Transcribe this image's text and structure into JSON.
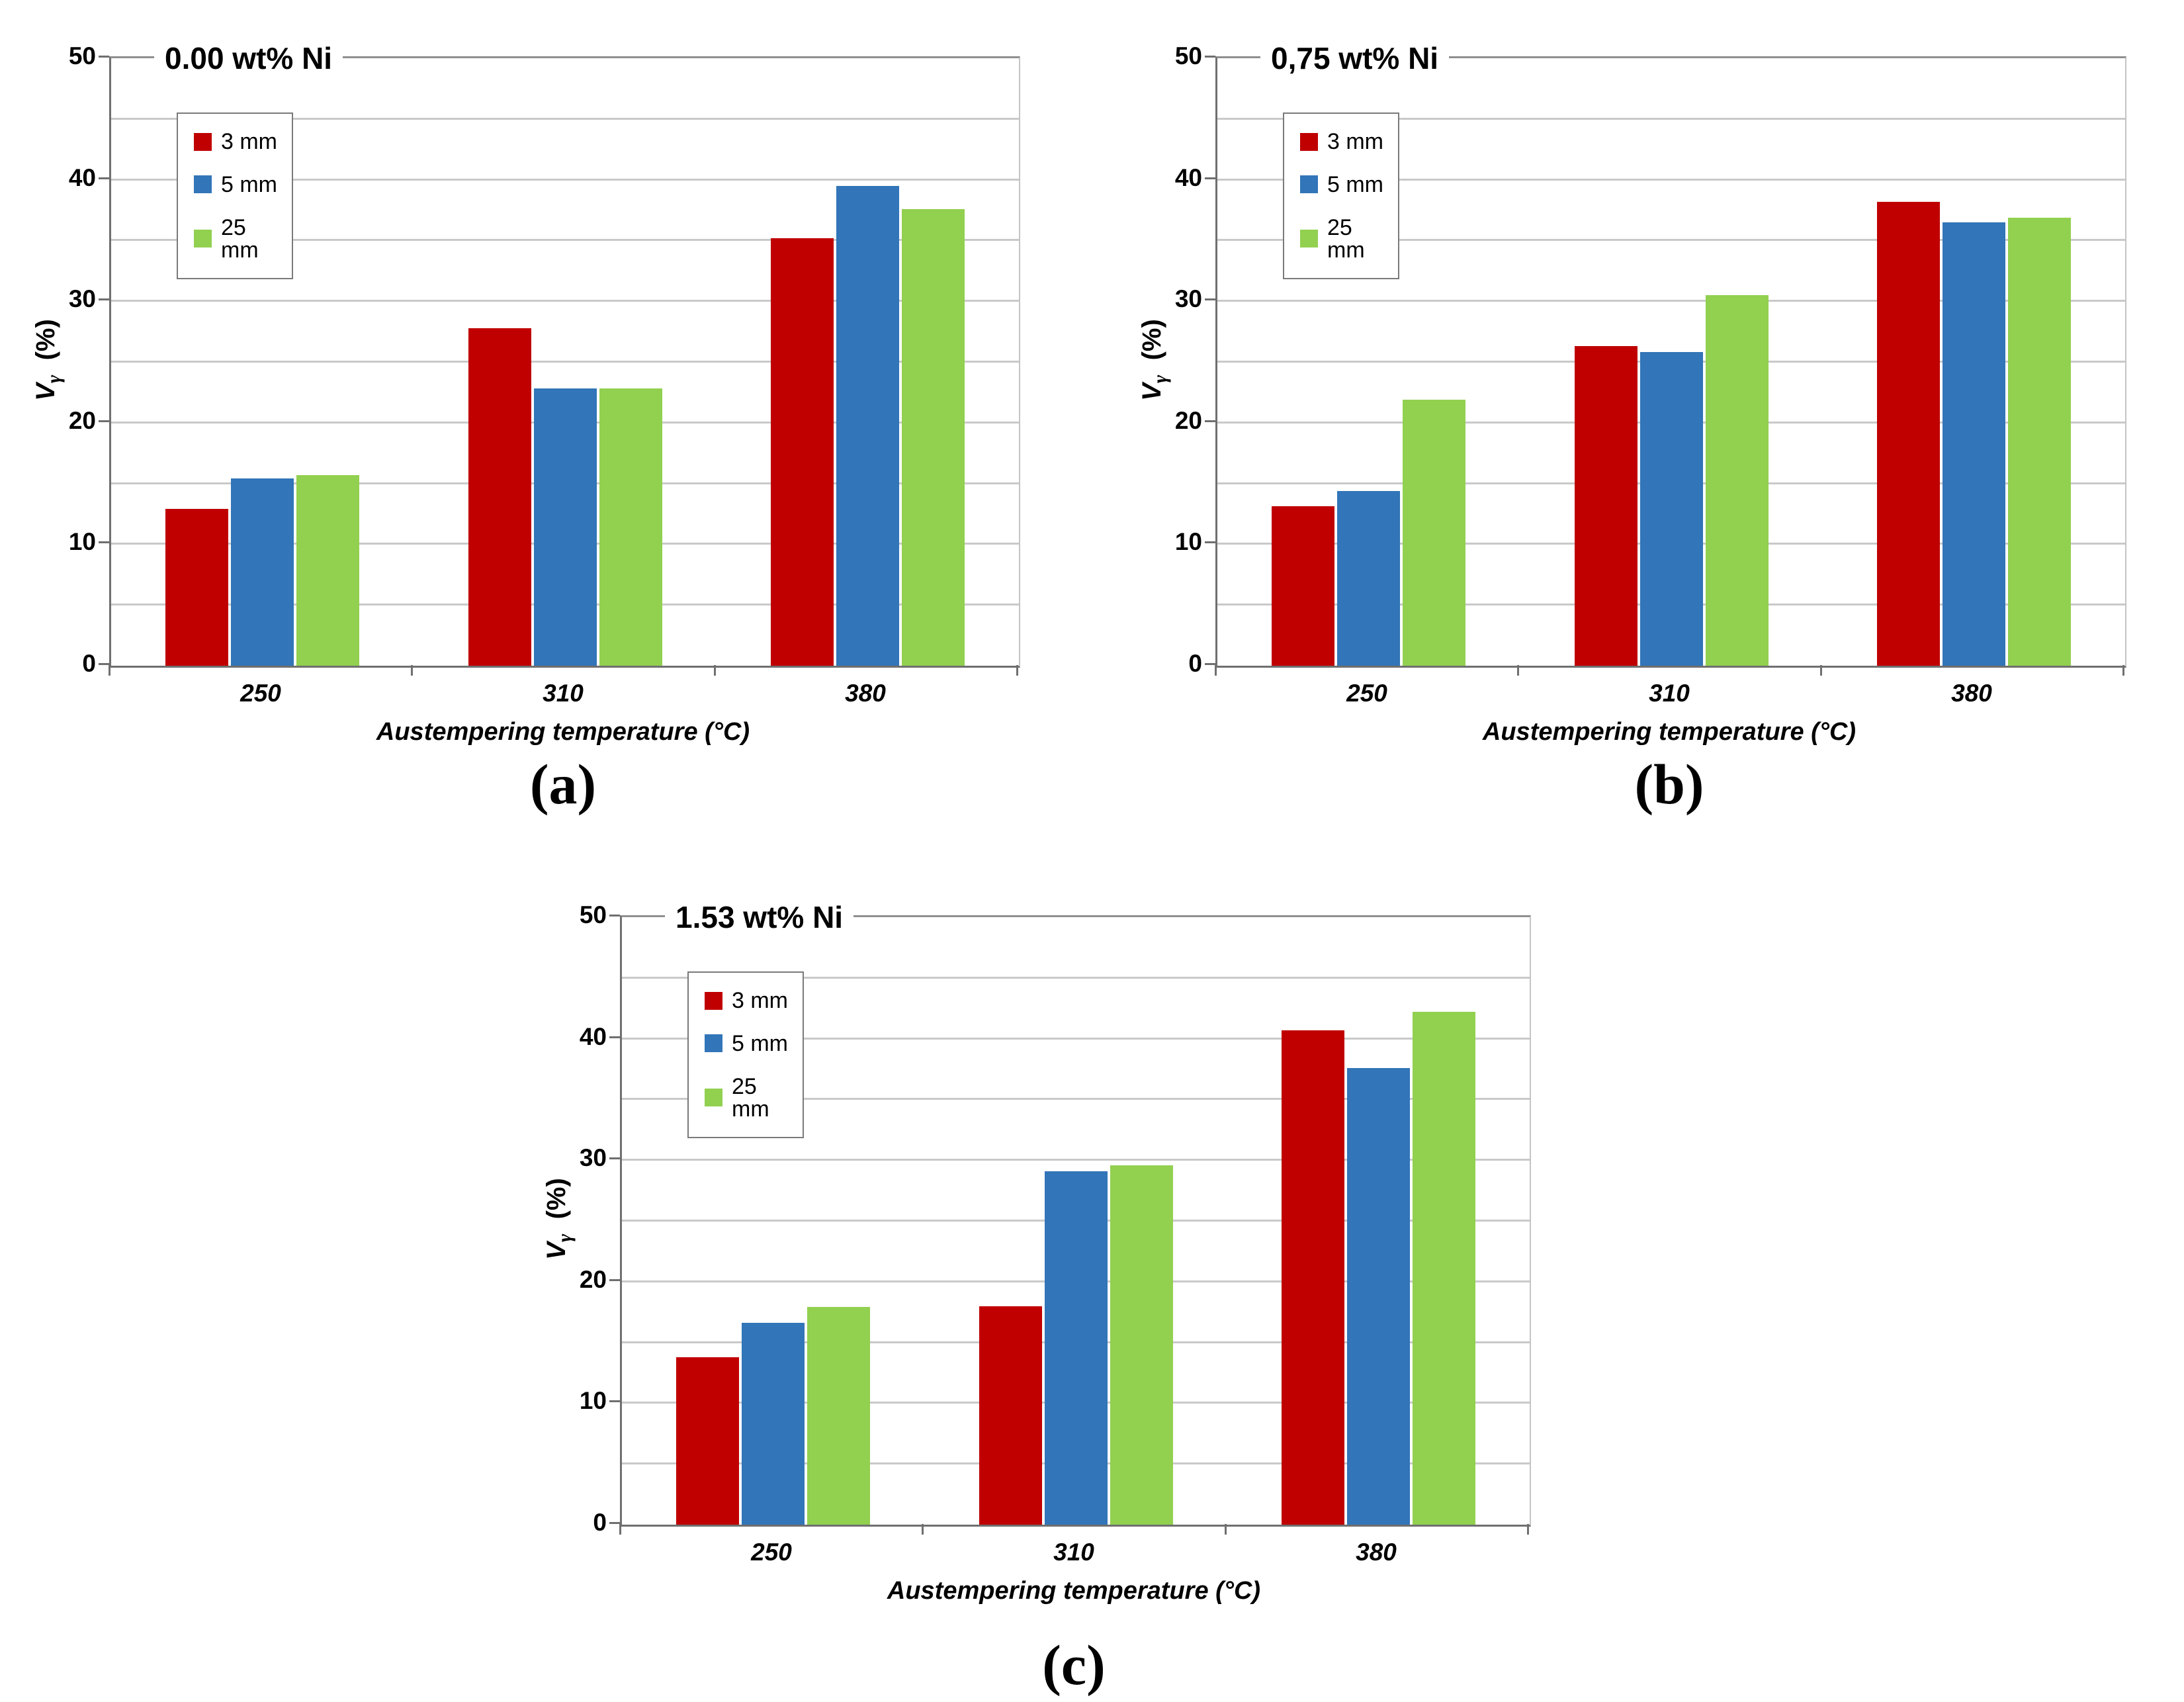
{
  "figure": {
    "subfig_labels": [
      "(a)",
      "(b)",
      "(c)"
    ],
    "xlabel": "Austempering temperature (°C)",
    "ylabel": {
      "symbol": "V",
      "subscript": "γ",
      "unit": "(%)"
    },
    "legend_labels": [
      "3 mm",
      "5 mm",
      "25 mm"
    ]
  },
  "colors": {
    "series_3mm": "#C00000",
    "series_5mm": "#3275B8",
    "series_25mm": "#92D050",
    "gridline": "#C9C9C9",
    "axis": "#6F6F6F"
  },
  "chart_data": [
    {
      "type": "bar",
      "title": "0.00 wt% Ni",
      "subfig_label": "(a)",
      "categories": [
        "250",
        "310",
        "380"
      ],
      "series": [
        {
          "name": "3 mm",
          "color": "#C00000",
          "values": [
            12.9,
            27.8,
            35.2
          ]
        },
        {
          "name": "5 mm",
          "color": "#3275B8",
          "values": [
            15.4,
            22.8,
            39.5
          ]
        },
        {
          "name": "25 mm",
          "color": "#92D050",
          "values": [
            15.7,
            22.8,
            37.6
          ]
        }
      ],
      "xlabel": "Austempering temperature (°C)",
      "ylabel": "Vγ (%)",
      "ylim": [
        0,
        50
      ],
      "ytick_step": 10,
      "grid_step": 5,
      "grid": true,
      "legend_position": "top-left"
    },
    {
      "type": "bar",
      "title": "0,75 wt% Ni",
      "subfig_label": "(b)",
      "categories": [
        "250",
        "310",
        "380"
      ],
      "series": [
        {
          "name": "3 mm",
          "color": "#C00000",
          "values": [
            13.1,
            26.3,
            38.2
          ]
        },
        {
          "name": "5 mm",
          "color": "#3275B8",
          "values": [
            14.4,
            25.8,
            36.5
          ]
        },
        {
          "name": "25 mm",
          "color": "#92D050",
          "values": [
            21.9,
            30.5,
            36.9
          ]
        }
      ],
      "xlabel": "Austempering temperature (°C)",
      "ylabel": "Vγ (%)",
      "ylim": [
        0,
        50
      ],
      "ytick_step": 10,
      "grid_step": 5,
      "grid": true,
      "legend_position": "top-left"
    },
    {
      "type": "bar",
      "title": "1.53 wt% Ni",
      "subfig_label": "(c)",
      "categories": [
        "250",
        "310",
        "380"
      ],
      "series": [
        {
          "name": "3 mm",
          "color": "#C00000",
          "values": [
            13.8,
            18.0,
            40.7
          ]
        },
        {
          "name": "5 mm",
          "color": "#3275B8",
          "values": [
            16.6,
            29.1,
            37.6
          ]
        },
        {
          "name": "25 mm",
          "color": "#92D050",
          "values": [
            17.9,
            29.6,
            42.2
          ]
        }
      ],
      "xlabel": "Austempering temperature (°C)",
      "ylabel": "Vγ (%)",
      "ylim": [
        0,
        50
      ],
      "ytick_step": 10,
      "grid_step": 5,
      "grid": true,
      "legend_position": "top-left"
    }
  ]
}
